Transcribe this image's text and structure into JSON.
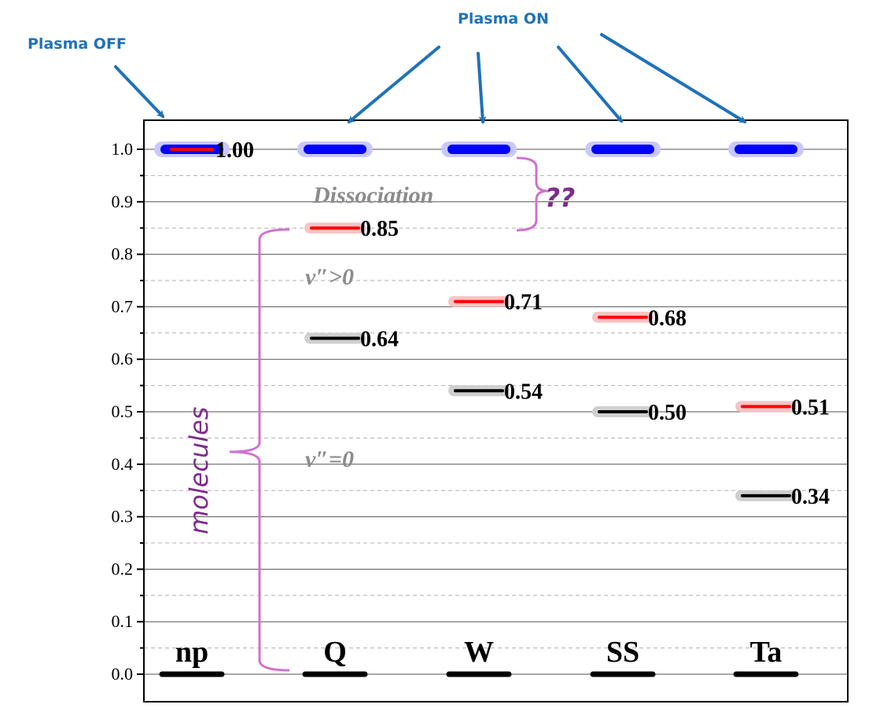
{
  "chart_data": {
    "type": "level-diagram",
    "categories": [
      "np",
      "Q",
      "W",
      "SS",
      "Ta"
    ],
    "ylim": [
      0.0,
      1.0
    ],
    "yticks": [
      "0.0",
      "0.1",
      "0.2",
      "0.3",
      "0.4",
      "0.5",
      "0.6",
      "0.7",
      "0.8",
      "0.9",
      "1.0"
    ],
    "grid": true,
    "series": [
      {
        "name": "",
        "style": "blue",
        "values": [
          1.0,
          1.0,
          1.0,
          1.0,
          1.0
        ]
      },
      {
        "name": "",
        "style": "red",
        "values": [
          1.0,
          0.85,
          0.71,
          0.68,
          0.51
        ],
        "labels": [
          "1.00",
          "0.85",
          "0.71",
          "0.68",
          "0.51"
        ]
      },
      {
        "name": "",
        "style": "black",
        "values": [
          null,
          0.64,
          0.54,
          0.5,
          0.34
        ],
        "labels": [
          "",
          "0.64",
          "0.54",
          "0.50",
          "0.34"
        ]
      },
      {
        "name": "",
        "style": "baseline",
        "values": [
          0.0,
          0.0,
          0.0,
          0.0,
          0.0
        ]
      }
    ],
    "annotations": {
      "plasma_off": "Plasma OFF",
      "plasma_on": "Plasma ON",
      "dissociation": "Dissociation",
      "question": "??",
      "vib_excited": "v″>0",
      "vib_ground": "v″=0",
      "molecules": "molecules"
    }
  },
  "colors": {
    "blue": "#0000ff",
    "red": "#ff0000",
    "black": "#000000",
    "arrow": "#1f72b8",
    "brace": "#d070d0",
    "grid": "#8c8c8c"
  }
}
